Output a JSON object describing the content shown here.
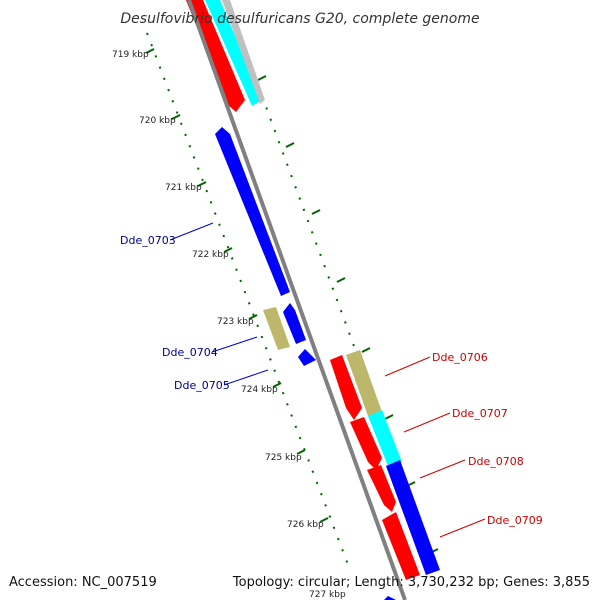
{
  "title": "Desulfovibrio desulfuricans G20, complete genome",
  "accession_text": "Accession: NC_007519",
  "info_text": "Topology: circular; Length: 3,730,232 bp; Genes: 3,855",
  "kbp_labels": [
    "719 kbp",
    "720 kbp",
    "721 kbp",
    "722 kbp",
    "723 kbp",
    "724 kbp",
    "725 kbp",
    "726 kbp",
    "727 kbp"
  ],
  "gene_labels": [
    {
      "text": "Dde_0703",
      "color": "#00008b"
    },
    {
      "text": "Dde_0704",
      "color": "#00008b"
    },
    {
      "text": "Dde_0705",
      "color": "#00008b"
    },
    {
      "text": "Dde_0706",
      "color": "#cc0000"
    },
    {
      "text": "Dde_0707",
      "color": "#cc0000"
    },
    {
      "text": "Dde_0708",
      "color": "#cc0000"
    },
    {
      "text": "Dde_0709",
      "color": "#cc0000"
    }
  ],
  "colors": {
    "forward_cds": "#ff0000",
    "reverse_cds": "#0000ff",
    "rna": "#bdb76b",
    "other_feature": "#00ffff",
    "misc_feature": "#c0c0c0",
    "backbone": "#808080",
    "tick": "#006400"
  }
}
